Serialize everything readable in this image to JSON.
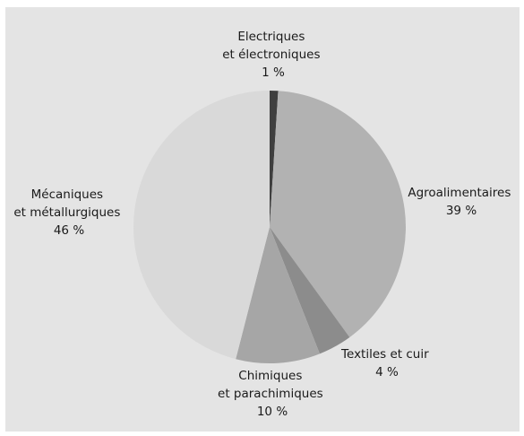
{
  "background_color": "#e4e4e4",
  "chart_data": {
    "type": "pie",
    "unit": "%",
    "start": "12 o'clock, clockwise",
    "slices": [
      {
        "label_lines": [
          "Electriques",
          "et électroniques"
        ],
        "value": 1,
        "value_label": "1 %",
        "color": "#3f3f3f"
      },
      {
        "label_lines": [
          "Agroalimentaires"
        ],
        "value": 39,
        "value_label": "39 %",
        "color": "#b2b2b2"
      },
      {
        "label_lines": [
          "Textiles et cuir"
        ],
        "value": 4,
        "value_label": "4 %",
        "color": "#8c8c8c"
      },
      {
        "label_lines": [
          "Chimiques",
          "et parachimiques"
        ],
        "value": 10,
        "value_label": "10 %",
        "color": "#a6a6a6"
      },
      {
        "label_lines": [
          "Mécaniques",
          "et métallurgiques"
        ],
        "value": 46,
        "value_label": "46 %",
        "color": "#d9d9d9"
      }
    ]
  }
}
